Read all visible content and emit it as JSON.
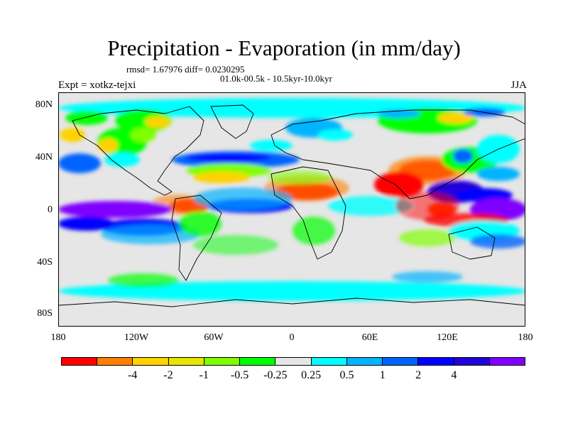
{
  "title": "Precipitation - Evaporation (in mm/day)",
  "stats": "rmsd= 1.67976 diff= 0.0230295",
  "period": "01.0k-00.5k - 10.5kyr-10.0kyr",
  "experiment": "Expt = xotkz-tejxi",
  "season": "JJA",
  "y_ticks": [
    "80N",
    "40N",
    "0",
    "40S",
    "80S"
  ],
  "x_ticks": [
    "180",
    "120W",
    "60W",
    "0",
    "60E",
    "120E",
    "180"
  ],
  "colorbar": {
    "colors": [
      "#ff0000",
      "#ff8000",
      "#ffd200",
      "#e6e600",
      "#80ff00",
      "#00ff00",
      "#e6e6e6",
      "#00ffff",
      "#00b4ff",
      "#0064ff",
      "#0000ff",
      "#2000dc",
      "#8000ff"
    ],
    "labels": [
      "-4",
      "-2",
      "-1",
      "-0.5",
      "-0.25",
      "0.25",
      "0.5",
      "1",
      "2",
      "4"
    ]
  },
  "map": {
    "background_color": "#e6e6e6",
    "anomaly_regions": [
      {
        "name": "west-africa-sahel",
        "color": "#ff0000"
      },
      {
        "name": "north-amazon",
        "color": "#ff0000"
      },
      {
        "name": "indian-subcontinent",
        "color": "#ff0000"
      },
      {
        "name": "indonesia",
        "color": "#ff4000"
      },
      {
        "name": "tropical-east-pacific",
        "color": "#8000ff"
      },
      {
        "name": "tropical-atlantic",
        "color": "#0000ff"
      },
      {
        "name": "west-pacific",
        "color": "#2000dc"
      },
      {
        "name": "south-pacific",
        "color": "#0000ff"
      },
      {
        "name": "southern-ocean",
        "color": "#00ffff"
      },
      {
        "name": "north-atlantic",
        "color": "#0064ff"
      },
      {
        "name": "siberia",
        "color": "#00ff00"
      },
      {
        "name": "arctic",
        "color": "#00ffff"
      }
    ]
  }
}
